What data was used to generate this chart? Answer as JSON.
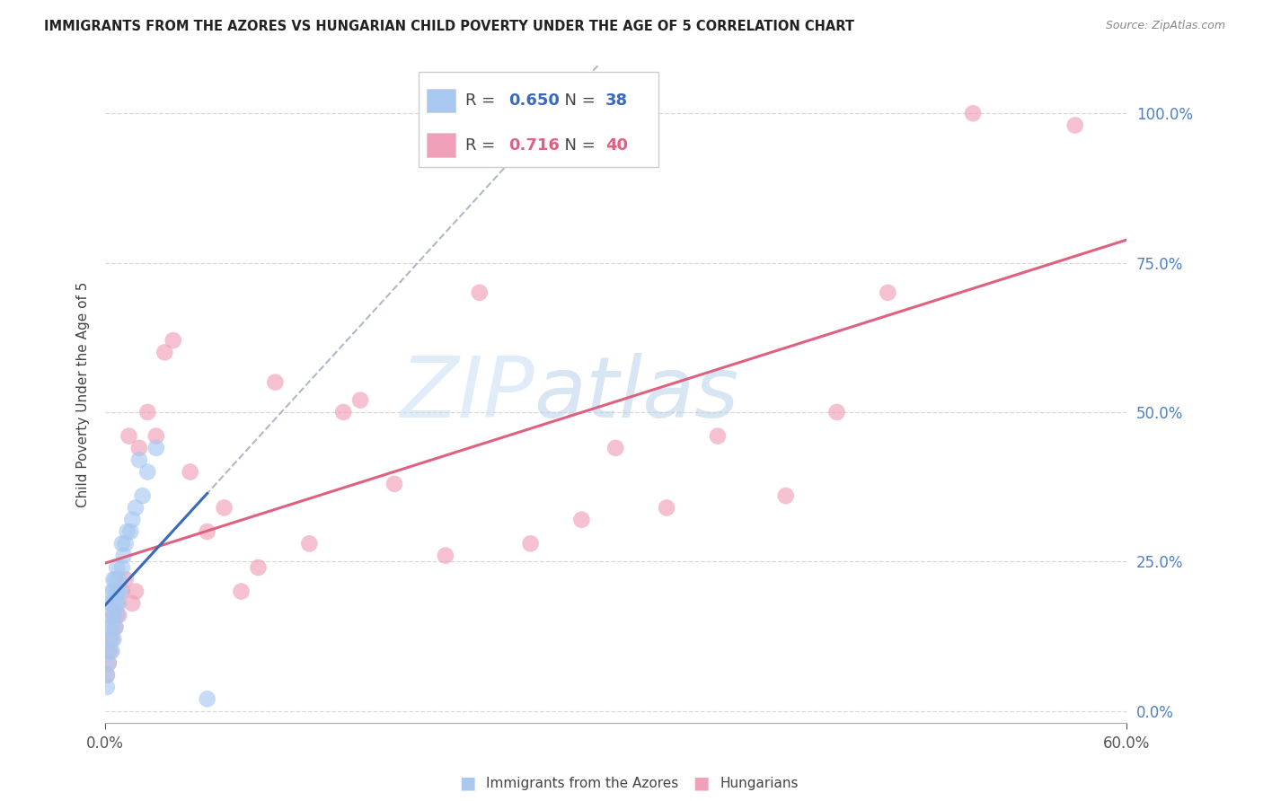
{
  "title": "IMMIGRANTS FROM THE AZORES VS HUNGARIAN CHILD POVERTY UNDER THE AGE OF 5 CORRELATION CHART",
  "source": "Source: ZipAtlas.com",
  "ylabel": "Child Poverty Under the Age of 5",
  "xlim": [
    0,
    0.6
  ],
  "ylim": [
    -0.02,
    1.08
  ],
  "yticks": [
    0.0,
    0.25,
    0.5,
    0.75,
    1.0
  ],
  "xticks": [
    0.0,
    0.6
  ],
  "background_color": "#ffffff",
  "grid_color": "#d8d8d8",
  "watermark_zip": "ZIP",
  "watermark_atlas": "atlas",
  "azores": {
    "label": "Immigrants from the Azores",
    "R": 0.65,
    "N": 38,
    "color_scatter": "#a8c8f0",
    "color_line": "#3a6abf",
    "x": [
      0.001,
      0.001,
      0.002,
      0.002,
      0.002,
      0.003,
      0.003,
      0.003,
      0.004,
      0.004,
      0.004,
      0.004,
      0.005,
      0.005,
      0.005,
      0.005,
      0.006,
      0.006,
      0.006,
      0.007,
      0.007,
      0.007,
      0.008,
      0.008,
      0.009,
      0.01,
      0.01,
      0.011,
      0.012,
      0.013,
      0.015,
      0.016,
      0.018,
      0.02,
      0.022,
      0.025,
      0.03,
      0.06
    ],
    "y": [
      0.04,
      0.06,
      0.08,
      0.1,
      0.14,
      0.12,
      0.16,
      0.18,
      0.1,
      0.14,
      0.18,
      0.2,
      0.12,
      0.16,
      0.2,
      0.22,
      0.14,
      0.18,
      0.22,
      0.16,
      0.2,
      0.24,
      0.18,
      0.22,
      0.2,
      0.24,
      0.28,
      0.26,
      0.28,
      0.3,
      0.3,
      0.32,
      0.34,
      0.42,
      0.36,
      0.4,
      0.44,
      0.02
    ]
  },
  "hungarians": {
    "label": "Hungarians",
    "R": 0.716,
    "N": 40,
    "color_scatter": "#f0a0b8",
    "color_line": "#e06080",
    "x": [
      0.001,
      0.002,
      0.003,
      0.004,
      0.005,
      0.006,
      0.007,
      0.008,
      0.01,
      0.012,
      0.014,
      0.016,
      0.018,
      0.02,
      0.025,
      0.03,
      0.035,
      0.04,
      0.05,
      0.06,
      0.07,
      0.08,
      0.09,
      0.1,
      0.12,
      0.14,
      0.15,
      0.17,
      0.2,
      0.22,
      0.25,
      0.28,
      0.3,
      0.33,
      0.36,
      0.4,
      0.43,
      0.46,
      0.51,
      0.57
    ],
    "y": [
      0.06,
      0.08,
      0.1,
      0.12,
      0.16,
      0.14,
      0.18,
      0.16,
      0.2,
      0.22,
      0.46,
      0.18,
      0.2,
      0.44,
      0.5,
      0.46,
      0.6,
      0.62,
      0.4,
      0.3,
      0.34,
      0.2,
      0.24,
      0.55,
      0.28,
      0.5,
      0.52,
      0.38,
      0.26,
      0.7,
      0.28,
      0.32,
      0.44,
      0.34,
      0.46,
      0.36,
      0.5,
      0.7,
      1.0,
      0.98
    ]
  }
}
